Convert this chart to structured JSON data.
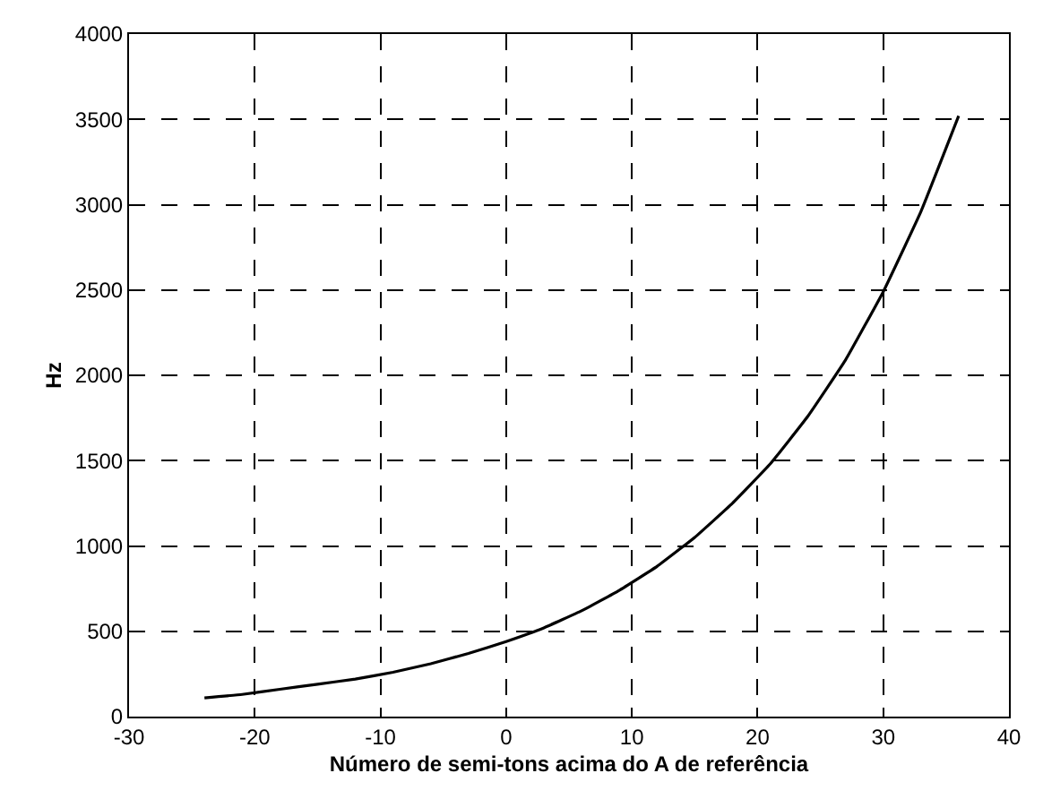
{
  "chart_data": {
    "type": "line",
    "xlabel": "Número de semi-tons acima do A de referência",
    "ylabel": "Hz",
    "x": [
      -24,
      -21,
      -18,
      -15,
      -12,
      -9,
      -6,
      -3,
      0,
      3,
      6,
      9,
      12,
      15,
      18,
      21,
      24,
      27,
      30,
      33,
      36
    ],
    "series": [
      {
        "color": "#000000",
        "values": [
          110,
          130,
          160,
          190,
          220,
          260,
          310,
          370,
          440,
          520,
          620,
          740,
          880,
          1050,
          1250,
          1480,
          1760,
          2090,
          2490,
          2960,
          3520
        ]
      }
    ],
    "xlim": [
      -30,
      40
    ],
    "xticks": [
      -30,
      -20,
      -10,
      0,
      10,
      20,
      30,
      40
    ],
    "ylim": [
      0,
      4000
    ],
    "yticks": [
      0,
      500,
      1000,
      1500,
      2000,
      2500,
      3000,
      3500,
      4000
    ],
    "grid": true,
    "legend": false,
    "marker": "none",
    "line_style": "solid"
  }
}
